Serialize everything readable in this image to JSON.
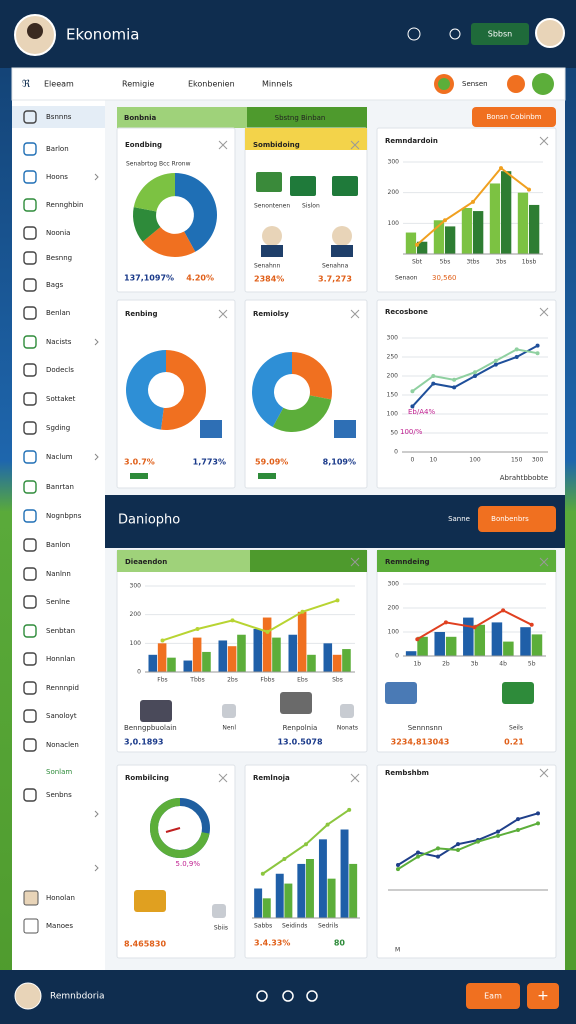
{
  "header": {
    "app_name": "Ekonomia",
    "button": "Sbbsn"
  },
  "topbar": {
    "tabs": [
      "Remigie",
      "Ekonbenien",
      "Minnels"
    ],
    "button": "Sensen",
    "action": "Bonsn Cobinbm"
  },
  "sidebar": {
    "title": "Eleeam",
    "items": [
      "Bsnnns",
      "Barlon",
      "Hoons",
      "Rennghbin",
      "Noonia",
      "Besnng",
      "Bags",
      "Benlan",
      "Nacists",
      "Dodecls",
      "Sottaket",
      "Sgding",
      "Naclum",
      "Banrtan",
      "Nognbpns",
      "Banlon",
      "Nanlnn",
      "Senlne",
      "Senbtan",
      "Honnlan",
      "Rennnpid",
      "Sanoloyt",
      "Nonaclen",
      "Sonlam",
      "Senbns"
    ],
    "footer_items": [
      "Honolan",
      "Manoes"
    ]
  },
  "section_header": {
    "left": "Bonbnia",
    "right": "Sbstng Binban"
  },
  "banner": {
    "title": "Daniopho",
    "label": "Sanne",
    "button": "Bonbenbrs"
  },
  "footer": {
    "title": "Remnbdoria",
    "button": "Eam",
    "add": "+"
  },
  "panels": [
    {
      "title": "Eondbing",
      "texts": [
        "Senabrtog Bcc Rronw",
        "137,1097%",
        "4.20%"
      ],
      "chart": {
        "type": "donut",
        "values": [
          42,
          22,
          14,
          22
        ],
        "colors": [
          "#1f6fb5",
          "#f07020",
          "#2e8b3a",
          "#7cc242"
        ]
      }
    },
    {
      "title": "Sombidoing",
      "texts": [
        "Senontenen",
        "Sislon",
        "Senahnn",
        "Senahna",
        "2384%",
        "3.7,273"
      ]
    },
    {
      "title": "Remndardoin",
      "texts": [
        "Senaon",
        "30,560"
      ],
      "chart": {
        "type": "xy",
        "categories": [
          "Sbt",
          "5bs",
          "3tbs",
          "3bs",
          "1bsb"
        ],
        "ylim": [
          0,
          300
        ],
        "yticks": [
          100,
          200,
          300
        ],
        "series": [
          {
            "kind": "bar",
            "color": "#7cc242",
            "values": [
              70,
              110,
              150,
              230,
              200
            ]
          },
          {
            "kind": "bar",
            "color": "#2e7d32",
            "values": [
              40,
              90,
              140,
              270,
              160
            ]
          },
          {
            "kind": "line",
            "color": "#f0a020",
            "values": [
              30,
              110,
              170,
              280,
              210
            ]
          }
        ]
      }
    },
    {
      "title": "Renbing",
      "texts": [
        "3.0.7%",
        "1,773%"
      ],
      "chart": {
        "type": "donut",
        "values": [
          52,
          48
        ],
        "colors": [
          "#f07020",
          "#2e8fd6"
        ]
      }
    },
    {
      "title": "Remiolsy",
      "texts": [
        "59.09%",
        "8,109%"
      ],
      "chart": {
        "type": "donut",
        "values": [
          28,
          30,
          42
        ],
        "colors": [
          "#f07020",
          "#5cae3a",
          "#2e8fd6"
        ]
      }
    },
    {
      "title": "Recosbone",
      "texts": [
        "Eb/A4%",
        "100/%",
        "Abrahtbbobte"
      ],
      "chart": {
        "type": "xy",
        "categories": [
          "0",
          "10",
          null,
          "100",
          null,
          "150",
          "300"
        ],
        "ylim": [
          0,
          300
        ],
        "yticks": [
          0,
          50,
          100,
          150,
          200,
          250,
          300
        ],
        "series": [
          {
            "kind": "line",
            "color": "#1f4f9a",
            "values": [
              120,
              180,
              170,
              200,
              230,
              250,
              280
            ]
          },
          {
            "kind": "line",
            "color": "#8fd0a0",
            "values": [
              160,
              200,
              190,
              210,
              240,
              270,
              260
            ]
          }
        ]
      }
    },
    {
      "title": "Dieaendon",
      "texts": [
        "Benngpbuolain",
        "3,0.1893",
        "Nenl",
        "Renpolnia",
        "13.0.5078",
        "Nonats"
      ],
      "chart": {
        "type": "xy",
        "categories": [
          "Fbs",
          "Tbbs",
          "2bs",
          "Fbbs",
          "Ebs",
          "Sbs"
        ],
        "ylim": [
          0,
          300
        ],
        "yticks": [
          0,
          100,
          200,
          300
        ],
        "series": [
          {
            "kind": "bar",
            "color": "#1f5fa8",
            "values": [
              60,
              40,
              110,
              150,
              130,
              100
            ]
          },
          {
            "kind": "bar",
            "color": "#f07020",
            "values": [
              100,
              120,
              90,
              190,
              210,
              60
            ]
          },
          {
            "kind": "bar",
            "color": "#5cae3a",
            "values": [
              50,
              70,
              130,
              120,
              60,
              80
            ]
          },
          {
            "kind": "line",
            "color": "#b8d432",
            "values": [
              110,
              150,
              180,
              140,
              210,
              250
            ]
          }
        ]
      }
    },
    {
      "title": "Remndeing",
      "texts": [
        "Sennnsnn",
        "3234,813043",
        "Seils",
        "0.21"
      ],
      "chart": {
        "type": "xy",
        "categories": [
          "1b",
          "2b",
          "3b",
          "4b",
          "5b"
        ],
        "ylim": [
          0,
          300
        ],
        "yticks": [
          0,
          100,
          200,
          300
        ],
        "series": [
          {
            "kind": "bar",
            "color": "#1f5fa8",
            "values": [
              20,
              100,
              160,
              140,
              120
            ]
          },
          {
            "kind": "bar",
            "color": "#5cae3a",
            "values": [
              80,
              80,
              130,
              60,
              90
            ]
          },
          {
            "kind": "line",
            "color": "#e04020",
            "values": [
              70,
              140,
              120,
              190,
              130
            ]
          }
        ]
      }
    },
    {
      "title": "Rombilcing",
      "texts": [
        "5.0,9%",
        "8.465830",
        "Sbiis"
      ],
      "chart": {
        "type": "gauge",
        "value": 72,
        "color": "#5cae3a"
      }
    },
    {
      "title": "Remlnoja",
      "texts": [
        "Sabbs",
        "Seidinds",
        "Sedrils",
        "3.4.33%",
        "80"
      ],
      "chart": {
        "type": "xy",
        "series": [
          {
            "kind": "bar",
            "color": "#1f5fa8",
            "values": [
              30,
              45,
              55,
              80,
              90
            ]
          },
          {
            "kind": "bar",
            "color": "#5cae3a",
            "values": [
              20,
              35,
              60,
              40,
              55
            ]
          },
          {
            "kind": "line",
            "color": "#8cc63f",
            "values": [
              45,
              60,
              75,
              95,
              110
            ]
          }
        ]
      }
    },
    {
      "title": "Rembshbm",
      "texts": [
        "M"
      ],
      "chart": {
        "type": "xy",
        "series": [
          {
            "kind": "line",
            "color": "#1f3f8a",
            "values": [
              30,
              45,
              40,
              55,
              60,
              70,
              85,
              92
            ]
          },
          {
            "kind": "line",
            "color": "#5cae3a",
            "values": [
              25,
              40,
              50,
              48,
              58,
              65,
              72,
              80
            ]
          }
        ]
      }
    }
  ]
}
